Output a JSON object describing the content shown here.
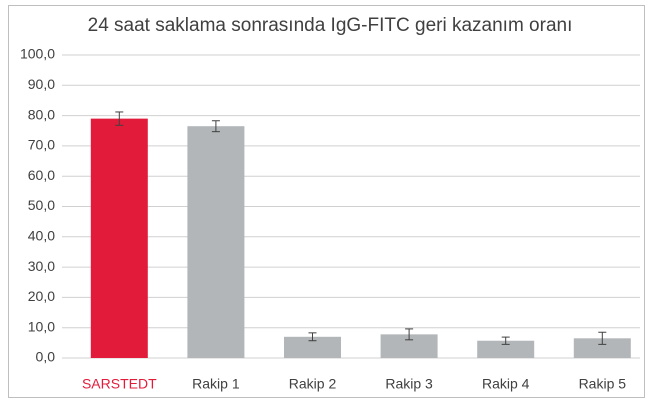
{
  "chart_data": {
    "type": "bar",
    "title": "24 saat saklama sonrasında IgG-FITC geri kazanım oranı",
    "categories": [
      "SARSTEDT",
      "Rakip 1",
      "Rakip 2",
      "Rakip 3",
      "Rakip 4",
      "Rakip 5"
    ],
    "values": [
      79,
      76.5,
      7,
      7.8,
      5.7,
      6.5
    ],
    "errors": [
      2.2,
      1.8,
      1.3,
      1.8,
      1.2,
      2
    ],
    "colors": [
      "#e31b3b",
      "#b3b6b9",
      "#b3b6b9",
      "#b3b6b9",
      "#b3b6b9",
      "#b3b6b9"
    ],
    "category_label_colors": [
      "#e31b3b",
      "#404040",
      "#404040",
      "#404040",
      "#404040",
      "#404040"
    ],
    "ylim": [
      0,
      100
    ],
    "yticks": [
      {
        "value": 0,
        "label": "0,0"
      },
      {
        "value": 10,
        "label": "10,0"
      },
      {
        "value": 20,
        "label": "20,0"
      },
      {
        "value": 30,
        "label": "30,0"
      },
      {
        "value": 40,
        "label": "40,0"
      },
      {
        "value": 50,
        "label": "50,0"
      },
      {
        "value": 60,
        "label": "60,0"
      },
      {
        "value": 70,
        "label": "70,0"
      },
      {
        "value": 80,
        "label": "80,0"
      },
      {
        "value": 90,
        "label": "90,0"
      },
      {
        "value": 100,
        "label": "100,0"
      }
    ],
    "grid": true
  }
}
